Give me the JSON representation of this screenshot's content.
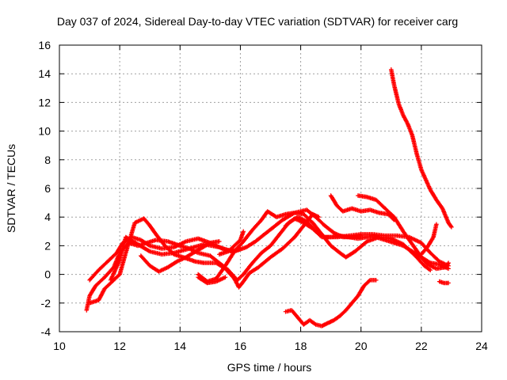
{
  "chart_data": {
    "type": "scatter",
    "title": "Day 037 of 2024, Sidereal Day-to-day VTEC variation (SDTVAR) for receiver carg",
    "xlabel": "GPS time / hours",
    "ylabel": "SDTVAR / TECUs",
    "xlim": [
      10,
      24
    ],
    "ylim": [
      -4,
      16
    ],
    "xticks": [
      10,
      12,
      14,
      16,
      18,
      20,
      22,
      24
    ],
    "yticks": [
      -4,
      -2,
      0,
      2,
      4,
      6,
      8,
      10,
      12,
      14,
      16
    ],
    "grid": true,
    "marker": "+",
    "color": "#ff0000",
    "series": [
      {
        "name": "trace-1",
        "points": [
          [
            10.9,
            -2.5
          ],
          [
            11.0,
            -1.5
          ],
          [
            11.2,
            -0.8
          ],
          [
            11.5,
            -0.2
          ],
          [
            11.8,
            0.5
          ],
          [
            12.0,
            1.5
          ],
          [
            12.3,
            2.2
          ],
          [
            12.6,
            2.0
          ],
          [
            12.9,
            2.2
          ],
          [
            13.2,
            2.4
          ],
          [
            13.6,
            2.3
          ],
          [
            14.0,
            2.0
          ],
          [
            14.3,
            1.8
          ],
          [
            14.6,
            1.5
          ],
          [
            15.0,
            1.3
          ],
          [
            15.3,
            0.8
          ],
          [
            15.6,
            0.3
          ],
          [
            15.9,
            -0.4
          ],
          [
            16.1,
            0.0
          ],
          [
            16.4,
            0.8
          ],
          [
            16.7,
            1.5
          ],
          [
            17.0,
            2.0
          ],
          [
            17.3,
            2.8
          ],
          [
            17.6,
            3.6
          ],
          [
            17.9,
            4.0
          ],
          [
            18.2,
            3.7
          ],
          [
            18.5,
            3.0
          ],
          [
            18.8,
            2.6
          ],
          [
            19.2,
            2.6
          ],
          [
            19.6,
            2.7
          ],
          [
            20.0,
            2.8
          ],
          [
            20.4,
            2.8
          ],
          [
            20.8,
            2.7
          ],
          [
            21.2,
            2.7
          ],
          [
            21.6,
            2.6
          ],
          [
            22.0,
            2.2
          ],
          [
            22.3,
            1.5
          ],
          [
            22.6,
            0.9
          ],
          [
            22.9,
            0.6
          ]
        ]
      },
      {
        "name": "trace-2",
        "points": [
          [
            11.0,
            -0.4
          ],
          [
            11.3,
            0.3
          ],
          [
            11.6,
            0.9
          ],
          [
            11.9,
            1.5
          ],
          [
            12.1,
            2.2
          ],
          [
            12.4,
            2.6
          ],
          [
            12.7,
            2.4
          ],
          [
            13.0,
            2.0
          ],
          [
            13.4,
            1.8
          ],
          [
            13.8,
            1.9
          ],
          [
            14.2,
            2.3
          ],
          [
            14.6,
            2.5
          ],
          [
            15.0,
            2.2
          ],
          [
            15.4,
            1.8
          ],
          [
            15.8,
            1.6
          ],
          [
            16.2,
            1.9
          ],
          [
            16.5,
            2.3
          ],
          [
            16.8,
            2.8
          ],
          [
            17.1,
            3.3
          ],
          [
            17.4,
            3.8
          ],
          [
            17.8,
            4.3
          ],
          [
            18.1,
            4.2
          ],
          [
            18.4,
            3.6
          ],
          [
            18.7,
            2.8
          ],
          [
            19.0,
            2.0
          ],
          [
            19.3,
            1.5
          ],
          [
            19.5,
            1.2
          ],
          [
            19.8,
            1.6
          ],
          [
            20.2,
            2.3
          ],
          [
            20.6,
            2.6
          ],
          [
            21.0,
            2.5
          ],
          [
            21.4,
            2.1
          ],
          [
            21.8,
            1.3
          ],
          [
            22.1,
            0.6
          ],
          [
            22.3,
            0.3
          ]
        ]
      },
      {
        "name": "trace-3",
        "points": [
          [
            11.0,
            -2.0
          ],
          [
            11.3,
            -1.8
          ],
          [
            11.5,
            -1.0
          ],
          [
            11.8,
            -0.4
          ],
          [
            12.0,
            0.0
          ],
          [
            12.2,
            1.5
          ],
          [
            12.5,
            3.6
          ],
          [
            12.8,
            3.9
          ],
          [
            13.0,
            3.4
          ],
          [
            13.2,
            2.8
          ],
          [
            13.5,
            2.0
          ],
          [
            13.8,
            1.4
          ],
          [
            14.1,
            1.2
          ],
          [
            14.5,
            0.9
          ],
          [
            14.8,
            0.8
          ],
          [
            15.2,
            0.8
          ],
          [
            15.5,
            0.4
          ],
          [
            15.8,
            -0.3
          ],
          [
            15.95,
            -0.9
          ],
          [
            16.1,
            -0.5
          ],
          [
            16.3,
            0.1
          ],
          [
            16.6,
            0.5
          ],
          [
            17.0,
            1.2
          ],
          [
            17.4,
            1.8
          ],
          [
            17.8,
            2.6
          ],
          [
            18.1,
            3.4
          ],
          [
            18.4,
            4.2
          ],
          [
            18.6,
            4.0
          ]
        ]
      },
      {
        "name": "trace-4",
        "points": [
          [
            11.7,
            -0.4
          ],
          [
            12.0,
            1.0
          ],
          [
            12.2,
            2.6
          ],
          [
            12.6,
            2.1
          ],
          [
            13.0,
            1.6
          ],
          [
            13.4,
            1.4
          ],
          [
            13.8,
            1.5
          ],
          [
            14.3,
            1.8
          ],
          [
            14.8,
            2.1
          ],
          [
            15.3,
            1.9
          ],
          [
            15.7,
            1.6
          ],
          [
            16.0,
            1.8
          ]
        ]
      },
      {
        "name": "trace-5",
        "points": [
          [
            12.7,
            1.3
          ],
          [
            13.0,
            0.6
          ],
          [
            13.3,
            0.2
          ],
          [
            13.6,
            0.5
          ],
          [
            13.9,
            0.9
          ],
          [
            14.2,
            1.2
          ],
          [
            14.6,
            1.7
          ],
          [
            15.0,
            2.2
          ],
          [
            15.3,
            2.3
          ]
        ]
      },
      {
        "name": "trace-6",
        "points": [
          [
            14.6,
            0.0
          ],
          [
            14.9,
            -0.5
          ],
          [
            15.2,
            -0.3
          ],
          [
            15.5,
            0.6
          ],
          [
            15.8,
            1.6
          ],
          [
            16.1,
            2.3
          ],
          [
            16.4,
            3.1
          ],
          [
            16.7,
            3.8
          ],
          [
            16.9,
            4.4
          ],
          [
            17.2,
            4.0
          ],
          [
            17.5,
            4.2
          ],
          [
            17.8,
            4.3
          ],
          [
            18.2,
            4.5
          ],
          [
            18.5,
            4.0
          ],
          [
            18.8,
            3.4
          ],
          [
            19.1,
            2.9
          ],
          [
            19.4,
            2.6
          ],
          [
            19.7,
            2.6
          ],
          [
            20.0,
            2.7
          ]
        ]
      },
      {
        "name": "trace-7",
        "points": [
          [
            14.6,
            -0.2
          ],
          [
            14.9,
            -0.6
          ],
          [
            15.2,
            -0.5
          ],
          [
            15.5,
            -0.2
          ]
        ]
      },
      {
        "name": "trace-8",
        "points": [
          [
            15.3,
            1.4
          ],
          [
            15.6,
            1.6
          ],
          [
            16.0,
            2.4
          ],
          [
            16.1,
            3.0
          ]
        ]
      },
      {
        "name": "trace-9",
        "points": [
          [
            17.5,
            3.4
          ],
          [
            17.8,
            3.9
          ],
          [
            18.1,
            3.6
          ],
          [
            18.4,
            3.2
          ],
          [
            18.7,
            2.6
          ],
          [
            19.0,
            2.6
          ],
          [
            19.3,
            2.7
          ],
          [
            19.6,
            2.6
          ],
          [
            19.9,
            2.5
          ],
          [
            20.2,
            2.6
          ],
          [
            20.5,
            2.6
          ],
          [
            20.8,
            2.4
          ],
          [
            21.1,
            2.2
          ],
          [
            21.4,
            2.0
          ],
          [
            21.7,
            1.6
          ],
          [
            22.0,
            1.2
          ],
          [
            22.3,
            0.8
          ],
          [
            22.6,
            0.7
          ],
          [
            22.9,
            0.4
          ]
        ]
      },
      {
        "name": "trace-10",
        "points": [
          [
            19.0,
            5.5
          ],
          [
            19.2,
            4.8
          ],
          [
            19.4,
            4.4
          ],
          [
            19.7,
            4.6
          ],
          [
            20.0,
            4.4
          ],
          [
            20.3,
            4.5
          ],
          [
            20.6,
            4.3
          ],
          [
            20.9,
            4.2
          ],
          [
            21.1,
            3.8
          ]
        ]
      },
      {
        "name": "trace-11",
        "points": [
          [
            19.9,
            5.5
          ],
          [
            20.2,
            5.4
          ],
          [
            20.5,
            5.2
          ],
          [
            20.8,
            4.6
          ],
          [
            21.1,
            4.0
          ],
          [
            21.4,
            3.0
          ],
          [
            21.7,
            2.1
          ],
          [
            22.0,
            1.2
          ],
          [
            22.2,
            0.7
          ],
          [
            22.5,
            0.4
          ],
          [
            22.8,
            0.5
          ],
          [
            22.9,
            0.8
          ]
        ]
      },
      {
        "name": "trace-12",
        "points": [
          [
            21.0,
            14.3
          ],
          [
            21.1,
            13.2
          ],
          [
            21.25,
            11.9
          ],
          [
            21.4,
            11.1
          ],
          [
            21.55,
            10.5
          ],
          [
            21.7,
            9.7
          ],
          [
            21.85,
            8.4
          ],
          [
            22.0,
            7.3
          ],
          [
            22.15,
            6.6
          ],
          [
            22.3,
            5.9
          ],
          [
            22.5,
            5.2
          ],
          [
            22.7,
            4.6
          ],
          [
            22.9,
            3.6
          ],
          [
            23.0,
            3.3
          ]
        ]
      },
      {
        "name": "trace-13",
        "points": [
          [
            22.0,
            1.4
          ],
          [
            22.2,
            1.9
          ],
          [
            22.4,
            2.6
          ],
          [
            22.5,
            3.5
          ]
        ]
      },
      {
        "name": "trace-14",
        "points": [
          [
            22.6,
            -0.5
          ],
          [
            22.75,
            -0.6
          ],
          [
            22.9,
            -0.6
          ]
        ]
      },
      {
        "name": "trace-15",
        "points": [
          [
            17.5,
            -2.6
          ],
          [
            17.7,
            -2.5
          ],
          [
            17.9,
            -3.0
          ],
          [
            18.1,
            -3.5
          ],
          [
            18.3,
            -3.2
          ],
          [
            18.5,
            -3.5
          ],
          [
            18.7,
            -3.6
          ],
          [
            18.9,
            -3.4
          ],
          [
            19.1,
            -3.2
          ],
          [
            19.3,
            -2.9
          ],
          [
            19.5,
            -2.5
          ],
          [
            19.7,
            -2.0
          ],
          [
            19.9,
            -1.5
          ],
          [
            20.1,
            -0.8
          ],
          [
            20.3,
            -0.4
          ],
          [
            20.5,
            -0.4
          ]
        ]
      }
    ]
  }
}
